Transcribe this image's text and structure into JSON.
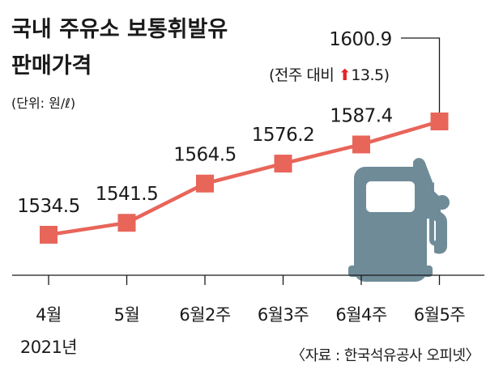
{
  "chart_data": {
    "type": "line",
    "title_lines": [
      "국내 주유소 보통휘발유",
      "판매가격"
    ],
    "unit": "(단위: 원/ℓ)",
    "categories": [
      "4월",
      "5월",
      "6월2주",
      "6월3주",
      "6월4주",
      "6월5주"
    ],
    "category_sublabels": [
      "2021년",
      "",
      "",
      "",
      "",
      ""
    ],
    "values": [
      1534.5,
      1541.5,
      1564.5,
      1576.2,
      1587.4,
      1600.9
    ],
    "value_labels": [
      "1534.5",
      "1541.5",
      "1564.5",
      "1576.2",
      "1587.4",
      "1600.9"
    ],
    "ylim": [
      1510,
      1610
    ],
    "annotation": {
      "prefix": "(전주 대비 ",
      "value": "13.5",
      "suffix": ")",
      "direction": "up"
    },
    "source": "〈자료 : 한국석유공사 오피넷〉",
    "grid": false,
    "colors": {
      "line": "#e8655a",
      "marker": "#e8655a",
      "arrow": "#e0262b",
      "pump": "#6f8b98",
      "text": "#1a1a1a"
    },
    "icon": "fuel-pump-icon"
  }
}
